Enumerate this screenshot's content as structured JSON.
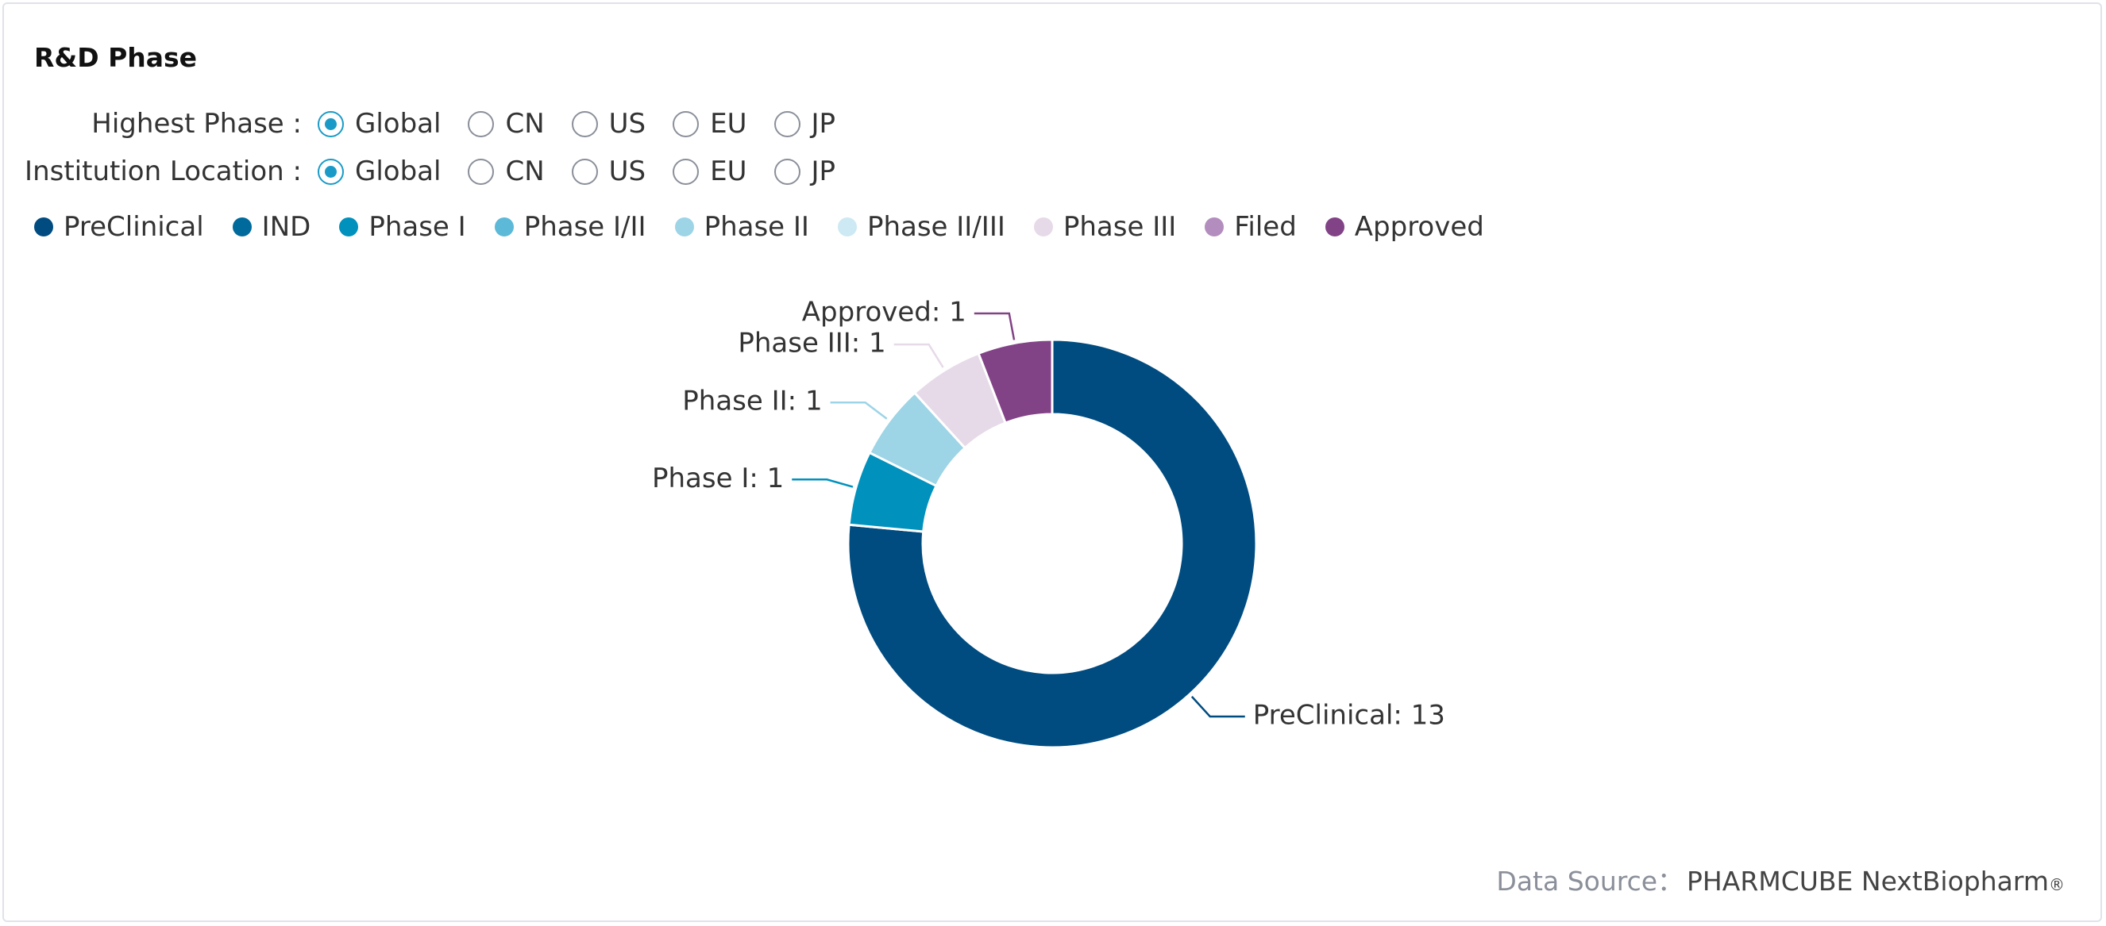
{
  "title": "R&D Phase",
  "filters": [
    {
      "label": "Highest Phase :",
      "options": [
        "Global",
        "CN",
        "US",
        "EU",
        "JP"
      ],
      "selected": "Global"
    },
    {
      "label": "Institution Location :",
      "options": [
        "Global",
        "CN",
        "US",
        "EU",
        "JP"
      ],
      "selected": "Global"
    }
  ],
  "colors": {
    "PreClinical": "#004c80",
    "IND": "#006a9c",
    "Phase I": "#0091bd",
    "Phase I/II": "#5db9d8",
    "Phase II": "#9dd4e6",
    "Phase II/III": "#cde9f3",
    "Phase III": "#e6dae8",
    "Filed": "#b38dbd",
    "Approved": "#824286"
  },
  "chart_data": {
    "type": "pie",
    "donut": true,
    "legend": "top-left",
    "categories": [
      "PreClinical",
      "IND",
      "Phase I",
      "Phase I/II",
      "Phase II",
      "Phase II/III",
      "Phase III",
      "Filed",
      "Approved"
    ],
    "values": [
      13,
      0,
      1,
      0,
      1,
      0,
      1,
      0,
      1
    ],
    "data_labels": [
      "PreClinical: 13",
      "",
      "Phase I: 1",
      "",
      "Phase II: 1",
      "",
      "Phase III: 1",
      "",
      "Approved: 1"
    ]
  },
  "footer": {
    "source_label": "Data Source：",
    "source_value": "PHARMCUBE NextBiopharm",
    "registered_mark": "®"
  }
}
